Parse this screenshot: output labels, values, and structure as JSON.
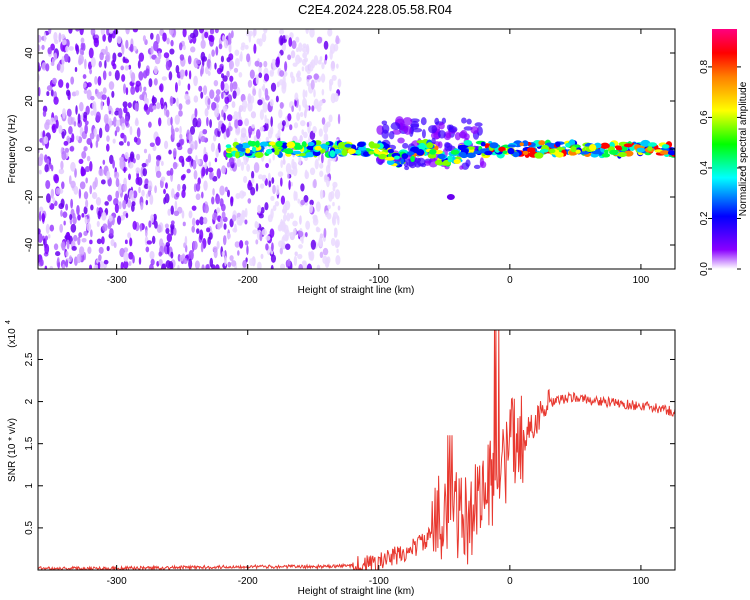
{
  "title": "C2E4.2024.228.05.58.R04",
  "chart_data": [
    {
      "type": "heatmap",
      "title": "C2E4.2024.228.05.58.R04",
      "xlabel": "Height of straight line (km)",
      "ylabel": "Frequency (Hz)",
      "xlim": [
        -360,
        126
      ],
      "ylim": [
        -50,
        50
      ],
      "xticks": [
        -300,
        -200,
        -100,
        0,
        100
      ],
      "yticks": [
        -40,
        -20,
        0,
        20,
        40
      ],
      "colorbar": {
        "label": "Normalized spectral amplitude",
        "range": [
          0,
          0.95
        ],
        "ticks": [
          0.0,
          0.2,
          0.4,
          0.6,
          0.8
        ],
        "colormap": [
          "#ffffff",
          "#8a00ff",
          "#0000ff",
          "#00ffff",
          "#00ff00",
          "#ffff00",
          "#ff8000",
          "#ff0000",
          "#ff0080"
        ]
      },
      "regions": [
        {
          "name": "noise",
          "x": [
            -360,
            -130
          ],
          "y": [
            -50,
            50
          ],
          "amplitude": 0.1
        },
        {
          "name": "signal-band",
          "x": [
            -215,
            126
          ],
          "y": [
            -3,
            3
          ],
          "amplitude": 0.7
        }
      ]
    },
    {
      "type": "line",
      "xlabel": "Height of straight line (km)",
      "ylabel": "SNR (10 * v/v)",
      "y_multiplier": "(x10",
      "y_multiplier_exp": "4",
      "xlim": [
        -360,
        126
      ],
      "ylim": [
        0,
        2.85
      ],
      "xticks": [
        -300,
        -200,
        -100,
        0,
        100
      ],
      "yticks": [
        0.5,
        1.0,
        1.5,
        2.0,
        2.5
      ],
      "series": [
        {
          "color": "#e8382f",
          "x": [
            -360,
            -300,
            -200,
            -140,
            -110,
            -100,
            -90,
            -80,
            -70,
            -60,
            -50,
            -45,
            -40,
            -35,
            -30,
            -25,
            -20,
            -15,
            -10,
            -5,
            0,
            10,
            20,
            30,
            40,
            50,
            60,
            80,
            100,
            126
          ],
          "y": [
            0.02,
            0.02,
            0.04,
            0.04,
            0.06,
            0.09,
            0.15,
            0.2,
            0.3,
            0.4,
            0.75,
            0.85,
            0.65,
            0.55,
            0.6,
            0.95,
            0.95,
            1.0,
            1.1,
            1.2,
            1.5,
            1.55,
            1.78,
            1.97,
            2.03,
            2.05,
            2.02,
            1.98,
            1.95,
            1.88
          ]
        }
      ]
    }
  ]
}
